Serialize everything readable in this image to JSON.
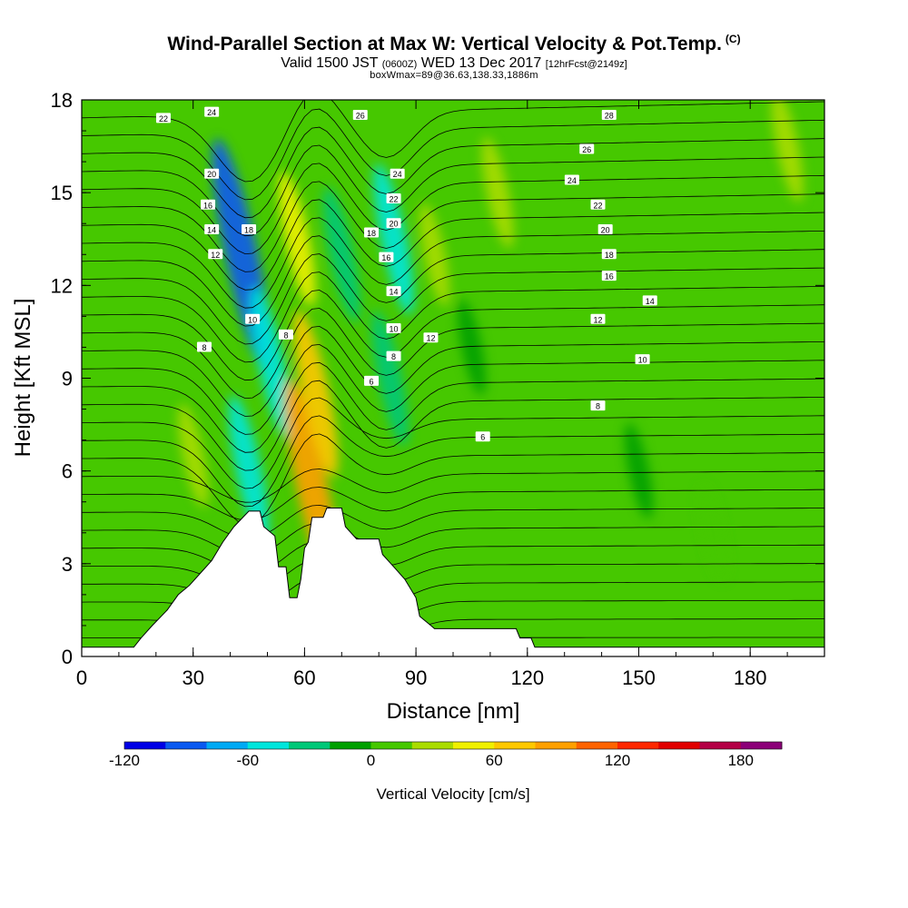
{
  "title": {
    "main": "Wind-Parallel Section at Max W: Vertical Velocity & Pot.Temp.",
    "corner_tag": "(C)",
    "valid_prefix": "Valid 1500 JST",
    "valid_zulu": "(0600Z)",
    "valid_date": "WED 13 Dec 2017",
    "forecast": "[12hrFcst@2149z]",
    "box_info": "boxWmax=89@36.63,138.33,1886m"
  },
  "chart_data": {
    "type": "heatmap",
    "xlabel": "Distance [nm]",
    "ylabel": "Height [Kft MSL]",
    "xlim": [
      0,
      200
    ],
    "ylim": [
      0,
      18
    ],
    "xticks": [
      "0",
      "30",
      "60",
      "90",
      "120",
      "150",
      "180"
    ],
    "yticks": [
      "0",
      "3",
      "6",
      "9",
      "12",
      "15",
      "18"
    ],
    "colorbar": {
      "title": "Vertical Velocity [cm/s]",
      "range": [
        -120,
        200
      ],
      "step": 20,
      "labels": [
        "-120",
        "-60",
        "0",
        "60",
        "120",
        "180"
      ],
      "colors": [
        "#0000e6",
        "#0a5af0",
        "#00aaf5",
        "#00e6dc",
        "#00c878",
        "#00a000",
        "#46c800",
        "#aadc00",
        "#f0f000",
        "#ffc800",
        "#ffa000",
        "#ff6400",
        "#ff2800",
        "#e10000",
        "#b40046",
        "#8c0078"
      ]
    },
    "terrain_profile_kft": [
      [
        0,
        0.3
      ],
      [
        14,
        0.3
      ],
      [
        16,
        0.6
      ],
      [
        19,
        1.0
      ],
      [
        23,
        1.5
      ],
      [
        26,
        2.0
      ],
      [
        29,
        2.3
      ],
      [
        32,
        2.7
      ],
      [
        35,
        3.1
      ],
      [
        38,
        3.7
      ],
      [
        41,
        4.2
      ],
      [
        45,
        4.7
      ],
      [
        48,
        4.7
      ],
      [
        49,
        4.2
      ],
      [
        52,
        3.9
      ],
      [
        53,
        2.9
      ],
      [
        55,
        2.9
      ],
      [
        56,
        1.9
      ],
      [
        58,
        1.9
      ],
      [
        59,
        2.5
      ],
      [
        60,
        3.5
      ],
      [
        61,
        3.7
      ],
      [
        62,
        4.5
      ],
      [
        65,
        4.5
      ],
      [
        66,
        4.8
      ],
      [
        70,
        4.8
      ],
      [
        71,
        4.2
      ],
      [
        74,
        3.8
      ],
      [
        80,
        3.8
      ],
      [
        81,
        3.3
      ],
      [
        84,
        2.9
      ],
      [
        87,
        2.5
      ],
      [
        90,
        1.9
      ],
      [
        91,
        1.3
      ],
      [
        94,
        1.0
      ],
      [
        95,
        0.9
      ],
      [
        117,
        0.9
      ],
      [
        118,
        0.6
      ],
      [
        121,
        0.6
      ],
      [
        122,
        0.3
      ],
      [
        200,
        0.3
      ]
    ],
    "vertical_velocity_features": [
      {
        "x": 43,
        "y": 13.0,
        "value": -100
      },
      {
        "x": 45,
        "y": 6.0,
        "value": -50
      },
      {
        "x": 51,
        "y": 9.5,
        "value": -50
      },
      {
        "x": 58,
        "y": 13.5,
        "value": 40
      },
      {
        "x": 62,
        "y": 5.5,
        "value": 89
      },
      {
        "x": 63,
        "y": 8.5,
        "value": 60
      },
      {
        "x": 70,
        "y": 13.0,
        "value": -40
      },
      {
        "x": 84,
        "y": 13.5,
        "value": -50
      },
      {
        "x": 83,
        "y": 9.0,
        "value": -40
      },
      {
        "x": 95,
        "y": 13.0,
        "value": 20
      },
      {
        "x": 105,
        "y": 10.0,
        "value": -15
      },
      {
        "x": 112,
        "y": 15.0,
        "value": 25
      },
      {
        "x": 30,
        "y": 6.5,
        "value": 20
      },
      {
        "x": 150,
        "y": 6.0,
        "value": -15
      },
      {
        "x": 170,
        "y": 4.0,
        "value": 15
      },
      {
        "x": 190,
        "y": 16.5,
        "value": 25
      }
    ],
    "contour_labels": [
      {
        "text": "22",
        "x": 22,
        "y": 17.4
      },
      {
        "text": "24",
        "x": 35,
        "y": 17.6
      },
      {
        "text": "20",
        "x": 35,
        "y": 15.6
      },
      {
        "text": "16",
        "x": 34,
        "y": 14.6
      },
      {
        "text": "14",
        "x": 35,
        "y": 13.8
      },
      {
        "text": "12",
        "x": 36,
        "y": 13.0
      },
      {
        "text": "18",
        "x": 45,
        "y": 13.8
      },
      {
        "text": "10",
        "x": 46,
        "y": 10.9
      },
      {
        "text": "8",
        "x": 33,
        "y": 10.0
      },
      {
        "text": "8",
        "x": 55,
        "y": 10.4
      },
      {
        "text": "26",
        "x": 75,
        "y": 17.5
      },
      {
        "text": "24",
        "x": 85,
        "y": 15.6
      },
      {
        "text": "22",
        "x": 84,
        "y": 14.8
      },
      {
        "text": "20",
        "x": 84,
        "y": 14.0
      },
      {
        "text": "18",
        "x": 78,
        "y": 13.7
      },
      {
        "text": "16",
        "x": 82,
        "y": 12.9
      },
      {
        "text": "14",
        "x": 84,
        "y": 11.8
      },
      {
        "text": "10",
        "x": 84,
        "y": 10.6
      },
      {
        "text": "8",
        "x": 84,
        "y": 9.7
      },
      {
        "text": "12",
        "x": 94,
        "y": 10.3
      },
      {
        "text": "6",
        "x": 78,
        "y": 8.9
      },
      {
        "text": "6",
        "x": 108,
        "y": 7.1
      },
      {
        "text": "28",
        "x": 142,
        "y": 17.5
      },
      {
        "text": "26",
        "x": 136,
        "y": 16.4
      },
      {
        "text": "24",
        "x": 132,
        "y": 15.4
      },
      {
        "text": "22",
        "x": 139,
        "y": 14.6
      },
      {
        "text": "20",
        "x": 141,
        "y": 13.8
      },
      {
        "text": "18",
        "x": 142,
        "y": 13.0
      },
      {
        "text": "16",
        "x": 142,
        "y": 12.3
      },
      {
        "text": "14",
        "x": 153,
        "y": 11.5
      },
      {
        "text": "12",
        "x": 139,
        "y": 10.9
      },
      {
        "text": "10",
        "x": 151,
        "y": 9.6
      },
      {
        "text": "8",
        "x": 139,
        "y": 8.1
      }
    ]
  }
}
